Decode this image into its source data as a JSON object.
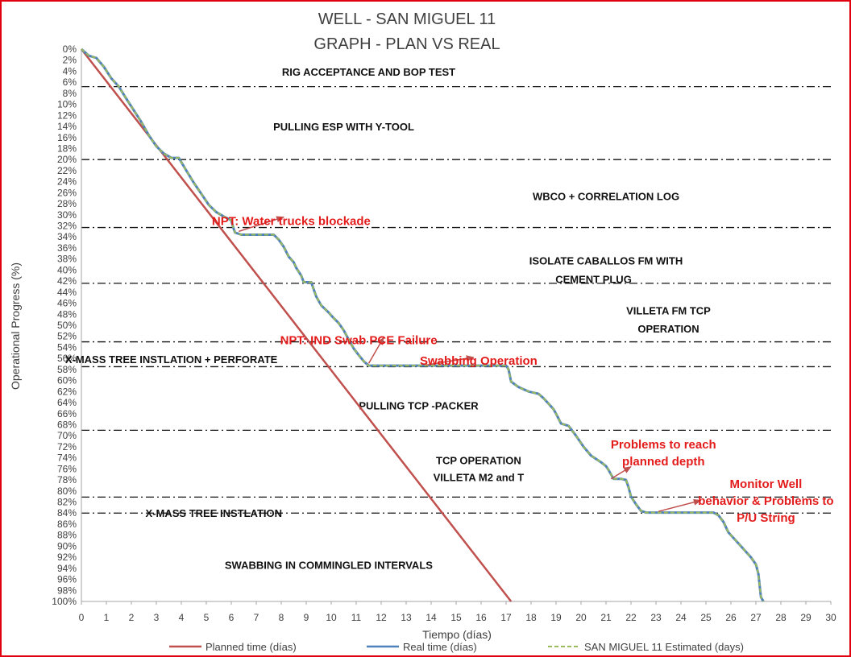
{
  "chart_data": {
    "type": "line",
    "title": [
      "WELL -  SAN MIGUEL 11",
      "GRAPH  - PLAN VS REAL"
    ],
    "xlabel": "Tiempo (días)",
    "ylabel": "Operational Progress (%)",
    "xlim": [
      0,
      30
    ],
    "ylim": [
      0,
      100
    ],
    "y_inverted": true,
    "x_ticks": [
      "0",
      "1",
      "2",
      "3",
      "4",
      "5",
      "6",
      "7",
      "8",
      "9",
      "10",
      "11",
      "12",
      "13",
      "14",
      "15",
      "16",
      "17",
      "18",
      "19",
      "20",
      "21",
      "22",
      "23",
      "24",
      "25",
      "26",
      "27",
      "28",
      "29",
      "30"
    ],
    "y_ticks": [
      "0%",
      "2%",
      "4%",
      "6%",
      "8%",
      "10%",
      "12%",
      "14%",
      "16%",
      "18%",
      "20%",
      "22%",
      "24%",
      "26%",
      "28%",
      "30%",
      "32%",
      "34%",
      "36%",
      "38%",
      "40%",
      "42%",
      "44%",
      "46%",
      "48%",
      "50%",
      "52%",
      "54%",
      "56%",
      "58%",
      "60%",
      "62%",
      "64%",
      "66%",
      "68%",
      "70%",
      "72%",
      "74%",
      "76%",
      "78%",
      "80%",
      "82%",
      "84%",
      "86%",
      "88%",
      "90%",
      "92%",
      "94%",
      "96%",
      "98%",
      "100%"
    ],
    "series": [
      {
        "name": "Planned time (días)",
        "color": "#c0504d",
        "x": [
          0,
          17.2
        ],
        "y": [
          0,
          100
        ]
      },
      {
        "name": "Real time (días)",
        "color": "#4f81bd",
        "x": [
          0,
          0.3,
          0.6,
          0.9,
          1.2,
          1.5,
          1.8,
          2.1,
          2.4,
          2.7,
          3.0,
          3.3,
          3.6,
          3.9,
          4.2,
          4.5,
          4.8,
          5.1,
          5.4,
          5.7,
          6.0,
          6.1,
          6.15,
          6.4,
          6.7,
          7.0,
          7.3,
          7.5,
          7.7,
          7.9,
          8.1,
          8.3,
          8.5,
          8.6,
          8.8,
          8.9,
          9.2,
          9.4,
          9.6,
          9.9,
          10.1,
          10.3,
          10.5,
          10.7,
          10.9,
          11.1,
          11.3,
          11.5,
          11.8,
          12.5,
          13.5,
          14.5,
          15.5,
          16.5,
          16.9,
          17.0,
          17.1,
          17.2,
          17.5,
          17.9,
          18.1,
          18.3,
          18.5,
          18.7,
          18.9,
          19.0,
          19.2,
          19.5,
          19.8,
          20.1,
          20.4,
          20.8,
          21.0,
          21.1,
          21.3,
          21.6,
          21.8,
          21.9,
          22.0,
          22.2,
          22.4,
          22.6,
          22.8,
          23.0,
          23.5,
          24.0,
          24.5,
          25.0,
          25.3,
          25.5,
          25.7,
          25.9,
          26.2,
          26.5,
          26.8,
          27.0,
          27.1,
          27.2,
          27.3
        ],
        "y": [
          0,
          1.2,
          1.6,
          3.2,
          5.3,
          6.8,
          9.0,
          11.1,
          13.2,
          15.6,
          17.6,
          18.9,
          19.7,
          19.7,
          22.0,
          24.2,
          26.2,
          28.2,
          29.5,
          30.3,
          31.0,
          32.6,
          33.2,
          33.6,
          33.6,
          33.6,
          33.6,
          33.6,
          33.6,
          34.5,
          35.8,
          37.6,
          38.6,
          39.6,
          41.0,
          42.2,
          42.2,
          44.8,
          46.4,
          47.7,
          48.7,
          49.6,
          50.9,
          52.6,
          54.2,
          55.4,
          56.5,
          57.3,
          57.3,
          57.3,
          57.3,
          57.3,
          57.3,
          57.3,
          57.3,
          57.3,
          58.0,
          60.2,
          61.2,
          62.0,
          62.2,
          62.4,
          63.2,
          64.2,
          65.2,
          66.0,
          67.8,
          68.2,
          70.0,
          72.0,
          73.6,
          74.8,
          75.5,
          76.2,
          77.8,
          77.8,
          78.0,
          79.3,
          81.0,
          82.4,
          83.6,
          83.9,
          83.9,
          83.9,
          83.9,
          83.9,
          83.9,
          83.9,
          83.9,
          84.4,
          85.6,
          87.5,
          89.0,
          90.5,
          92.0,
          93.3,
          95.0,
          99.2,
          100.0
        ]
      },
      {
        "name": "SAN MIGUEL 11 Estimated (days)",
        "color": "#9bbb59",
        "dashed": true,
        "same_as": "Real time (días)"
      }
    ],
    "reference_lines_y": [
      6.8,
      20.0,
      32.3,
      42.4,
      53.0,
      57.5,
      69.0,
      81.1,
      84.0
    ],
    "phase_labels": [
      {
        "text": "RIG ACCEPTANCE AND BOP TEST",
        "x": 11.5,
        "y": 4.1
      },
      {
        "text": "PULLING ESP WITH Y-TOOL",
        "x": 10.5,
        "y": 14.0
      },
      {
        "text": "WBCO + CORRELATION LOG",
        "x": 21.0,
        "y": 26.6
      },
      {
        "text": "ISOLATE CABALLOS FM WITH",
        "x": 21.0,
        "y": 38.3
      },
      {
        "text": "CEMENT PLUG",
        "x": 20.5,
        "y": 41.6
      },
      {
        "text": "VILLETA FM TCP",
        "x": 23.5,
        "y": 47.3
      },
      {
        "text": "OPERATION",
        "x": 23.5,
        "y": 50.6
      },
      {
        "text": "X-MASS TREE INSTLATION + PERFORATE",
        "x": 3.6,
        "y": 56.1
      },
      {
        "text": "PULLING TCP -PACKER",
        "x": 13.5,
        "y": 64.5
      },
      {
        "text": "TCP OPERATION",
        "x": 15.9,
        "y": 74.4
      },
      {
        "text": "VILLETA M2 and T",
        "x": 15.9,
        "y": 77.5
      },
      {
        "text": "X-MASS TREE INSTLATION",
        "x": 5.3,
        "y": 84.0
      },
      {
        "text": "SWABBING IN COMMINGLED INTERVALS",
        "x": 9.9,
        "y": 93.4
      }
    ],
    "annotations": [
      {
        "lines": [
          "NPT: Water trucks blockade"
        ],
        "x": 8.4,
        "y": 31.1,
        "arrow_from": [
          6.3,
          33.0
        ],
        "arrow_to": [
          8.1,
          30.4
        ]
      },
      {
        "lines": [
          "NPT: IND Swab PCE Failure"
        ],
        "x": 11.1,
        "y": 52.7,
        "arrow_from": [
          11.5,
          56.9
        ],
        "arrow_to": [
          12.1,
          52.2
        ]
      },
      {
        "lines": [
          "Swabbing Operation"
        ],
        "x": 15.9,
        "y": 56.4,
        "arrow_from": [
          13.8,
          57.2
        ],
        "arrow_to": [
          15.7,
          55.8
        ]
      },
      {
        "lines": [
          "Problems to reach",
          "planned depth"
        ],
        "x": 23.3,
        "y": 71.6,
        "arrow_from": [
          21.2,
          77.8
        ],
        "arrow_to": [
          22.0,
          75.6
        ]
      },
      {
        "lines": [
          "Monitor Well",
          "behavior & Problems to",
          "P/U String"
        ],
        "x": 27.4,
        "y": 78.7,
        "arrow_from": [
          23.1,
          83.7
        ],
        "arrow_to": [
          24.8,
          81.7
        ]
      }
    ],
    "legend_position": "bottom"
  }
}
